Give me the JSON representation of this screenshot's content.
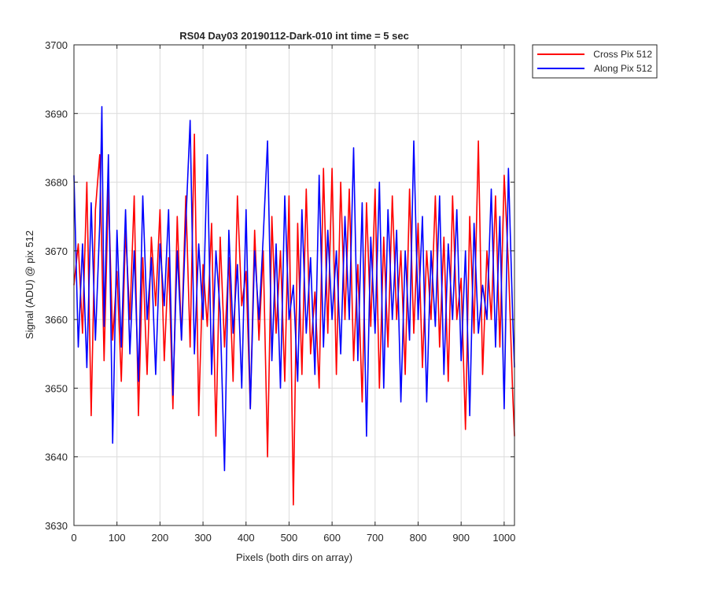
{
  "chart_data": {
    "type": "line",
    "title": "RS04 Day03 20190112-Dark-010 int time = 5 sec",
    "xlabel": "Pixels (both dirs on array)",
    "ylabel": "Signal (ADU) @ pix 512",
    "xlim": [
      0,
      1024
    ],
    "ylim": [
      3630,
      3700
    ],
    "xticks": [
      0,
      100,
      200,
      300,
      400,
      500,
      600,
      700,
      800,
      900,
      1000
    ],
    "yticks": [
      3630,
      3640,
      3650,
      3660,
      3670,
      3680,
      3690,
      3700
    ],
    "grid": true,
    "legend_position": "outside top-right",
    "series": [
      {
        "name": "Cross Pix 512",
        "color": "#ff0000",
        "x": [
          0,
          10,
          20,
          30,
          40,
          50,
          60,
          70,
          80,
          90,
          100,
          110,
          120,
          130,
          140,
          150,
          160,
          170,
          180,
          190,
          200,
          210,
          220,
          230,
          240,
          250,
          260,
          270,
          280,
          290,
          300,
          310,
          320,
          330,
          340,
          350,
          360,
          370,
          380,
          390,
          400,
          410,
          420,
          430,
          440,
          450,
          460,
          470,
          480,
          490,
          500,
          510,
          520,
          530,
          540,
          550,
          560,
          570,
          580,
          590,
          600,
          610,
          620,
          630,
          640,
          650,
          660,
          670,
          680,
          690,
          700,
          710,
          720,
          730,
          740,
          750,
          760,
          770,
          780,
          790,
          800,
          810,
          820,
          830,
          840,
          850,
          860,
          870,
          880,
          890,
          900,
          910,
          920,
          930,
          940,
          950,
          960,
          970,
          980,
          990,
          1000,
          1010,
          1020,
          1024
        ],
        "values": [
          3665,
          3671,
          3658,
          3680,
          3646,
          3676,
          3684,
          3654,
          3679,
          3657,
          3667,
          3651,
          3673,
          3660,
          3678,
          3646,
          3669,
          3652,
          3672,
          3662,
          3676,
          3654,
          3669,
          3647,
          3675,
          3657,
          3678,
          3656,
          3687,
          3646,
          3668,
          3659,
          3674,
          3643,
          3672,
          3656,
          3669,
          3651,
          3678,
          3662,
          3667,
          3647,
          3673,
          3657,
          3670,
          3640,
          3675,
          3658,
          3670,
          3651,
          3678,
          3633,
          3674,
          3652,
          3679,
          3655,
          3664,
          3650,
          3682,
          3658,
          3682,
          3652,
          3680,
          3660,
          3679,
          3654,
          3668,
          3648,
          3677,
          3659,
          3679,
          3650,
          3672,
          3656,
          3678,
          3660,
          3670,
          3652,
          3679,
          3658,
          3674,
          3653,
          3670,
          3660,
          3678,
          3656,
          3672,
          3651,
          3678,
          3660,
          3666,
          3644,
          3675,
          3658,
          3686,
          3652,
          3670,
          3660,
          3678,
          3656,
          3681,
          3668,
          3649,
          3643
        ]
      },
      {
        "name": "Along Pix 512",
        "color": "#0000ff",
        "x": [
          0,
          10,
          20,
          30,
          40,
          50,
          60,
          65,
          70,
          80,
          90,
          100,
          110,
          120,
          130,
          140,
          150,
          160,
          170,
          180,
          190,
          200,
          210,
          220,
          230,
          240,
          250,
          260,
          270,
          280,
          290,
          300,
          310,
          320,
          330,
          340,
          350,
          360,
          370,
          380,
          390,
          400,
          410,
          420,
          430,
          440,
          450,
          460,
          470,
          480,
          490,
          500,
          510,
          520,
          530,
          540,
          550,
          560,
          570,
          580,
          590,
          600,
          610,
          620,
          630,
          640,
          650,
          660,
          670,
          680,
          690,
          700,
          710,
          720,
          730,
          740,
          750,
          760,
          770,
          780,
          790,
          800,
          810,
          820,
          830,
          840,
          850,
          860,
          870,
          880,
          890,
          900,
          910,
          920,
          930,
          940,
          950,
          960,
          970,
          980,
          990,
          1000,
          1010,
          1020,
          1024
        ],
        "values": [
          3681,
          3656,
          3671,
          3653,
          3677,
          3657,
          3674,
          3691,
          3659,
          3684,
          3642,
          3673,
          3656,
          3676,
          3655,
          3670,
          3651,
          3678,
          3660,
          3669,
          3652,
          3671,
          3662,
          3676,
          3649,
          3670,
          3657,
          3674,
          3689,
          3655,
          3671,
          3660,
          3684,
          3652,
          3670,
          3661,
          3638,
          3673,
          3658,
          3668,
          3650,
          3676,
          3647,
          3670,
          3660,
          3672,
          3686,
          3654,
          3671,
          3650,
          3678,
          3660,
          3665,
          3651,
          3676,
          3658,
          3669,
          3652,
          3681,
          3656,
          3673,
          3660,
          3670,
          3655,
          3675,
          3660,
          3685,
          3654,
          3677,
          3643,
          3672,
          3658,
          3680,
          3650,
          3676,
          3660,
          3673,
          3648,
          3670,
          3657,
          3686,
          3660,
          3675,
          3648,
          3670,
          3659,
          3678,
          3652,
          3671,
          3660,
          3676,
          3654,
          3670,
          3646,
          3674,
          3658,
          3665,
          3660,
          3679,
          3656,
          3675,
          3647,
          3682,
          3660,
          3653
        ]
      }
    ]
  }
}
